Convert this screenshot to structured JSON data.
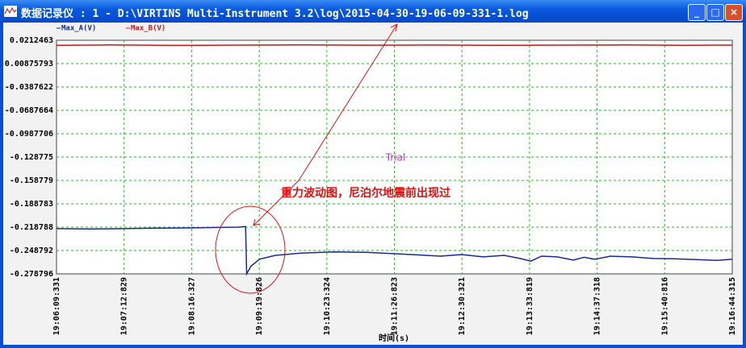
{
  "window": {
    "title": "数据记录仪 : 1 - D:\\VIRTINS Multi-Instrument 3.2\\log\\2015-04-30-19-06-09-331-1.log"
  },
  "chart_data": {
    "type": "line",
    "x_label": "时间(s)",
    "annotations": [
      "Trial",
      "重力波动图，尼泊尔地震前出现过"
    ],
    "ylim": [
      -0.278796,
      0.0212463
    ],
    "yticks": [
      0.0212463,
      -0.00875793,
      -0.0387622,
      -0.0687664,
      -0.0987706,
      -0.128775,
      -0.158779,
      -0.188783,
      -0.218788,
      -0.248792,
      -0.278796
    ],
    "xlim": [
      "19:06:09:331",
      "19:16:44:315"
    ],
    "xticks": [
      "19:06:09:331",
      "19:07:12:829",
      "19:08:16:327",
      "19:09:19:826",
      "19:10:23:324",
      "19:11:26:823",
      "19:12:30:321",
      "19:13:33:819",
      "19:14:37:318",
      "19:15:40:816",
      "19:16:44:315"
    ],
    "grid": true,
    "series": [
      {
        "name": "Max_A(V)",
        "color": "#1a2a8c",
        "x": [
          "19:06:09:331",
          "19:06:40",
          "19:07:10",
          "19:07:40",
          "19:08:10",
          "19:08:40",
          "19:09:00",
          "19:09:07",
          "19:09:08",
          "19:09:12",
          "19:09:20",
          "19:09:35",
          "19:10:00",
          "19:10:30",
          "19:11:00",
          "19:11:30",
          "19:11:50",
          "19:12:10",
          "19:12:30",
          "19:12:50",
          "19:13:10",
          "19:13:25",
          "19:13:35",
          "19:13:45",
          "19:14:00",
          "19:14:15",
          "19:14:25",
          "19:14:35",
          "19:14:50",
          "19:15:10",
          "19:15:30",
          "19:15:50",
          "19:16:10",
          "19:16:30",
          "19:16:44:315"
        ],
        "values": [
          -0.2205,
          -0.2212,
          -0.2208,
          -0.22,
          -0.2198,
          -0.2192,
          -0.2188,
          -0.218,
          -0.2788,
          -0.269,
          -0.26,
          -0.255,
          -0.252,
          -0.2505,
          -0.2512,
          -0.253,
          -0.2545,
          -0.256,
          -0.254,
          -0.257,
          -0.255,
          -0.259,
          -0.2625,
          -0.256,
          -0.257,
          -0.261,
          -0.2575,
          -0.26,
          -0.256,
          -0.257,
          -0.259,
          -0.2595,
          -0.2605,
          -0.2615,
          -0.26
        ]
      },
      {
        "name": "Max_B(V)",
        "color": "#c01818",
        "x": [
          "19:06:09:331",
          "19:07:00",
          "19:08:00",
          "19:09:00",
          "19:10:00",
          "19:11:00",
          "19:12:00",
          "19:13:00",
          "19:14:00",
          "19:15:00",
          "19:16:00",
          "19:16:44:315"
        ],
        "values": [
          0.0148,
          0.0152,
          0.0146,
          0.015,
          0.0153,
          0.0149,
          0.0151,
          0.0147,
          0.015,
          0.0152,
          0.0148,
          0.015
        ]
      }
    ]
  }
}
